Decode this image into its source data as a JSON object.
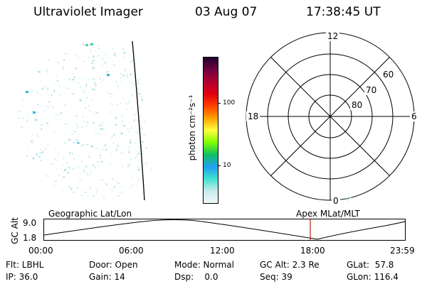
{
  "header": {
    "title": "Ultraviolet Imager",
    "date": "03 Aug 07",
    "time": "17:38:45 UT"
  },
  "colorbar": {
    "unit_label": "photon cm⁻²s⁻¹",
    "ticks": [
      "100",
      "10"
    ],
    "colors": [
      "#f0f8f8",
      "#c8ecec",
      "#40e0d0",
      "#20a0f0",
      "#10c060",
      "#80ff00",
      "#ffff40",
      "#ffa000",
      "#ff4000",
      "#e00010",
      "#b00030",
      "#700040",
      "#200030"
    ]
  },
  "polar_plot": {
    "mlt_labels": {
      "top": "12",
      "left": "18",
      "right": "6",
      "bottom": "0"
    },
    "lat_labels": [
      "60",
      "70",
      "80"
    ]
  },
  "timeline": {
    "y_axis_label": "GC Alt",
    "y_ticks": [
      "9.0",
      "1.8"
    ],
    "left_title": "Geographic Lat/Lon",
    "right_title": "Apex MLat/MLT",
    "time_ticks": [
      "00:00",
      "06:00",
      "12:00",
      "18:00",
      "23:59"
    ],
    "marker_color": "#c03020"
  },
  "info": {
    "col1": [
      "Flt: LBHL",
      "IP: 36.0"
    ],
    "col2": [
      "Door: Open",
      "Gain: 14"
    ],
    "col3": [
      "Mode: Normal",
      "Dsp:    0.0"
    ],
    "col4": [
      "GC Alt: 2.3 Re",
      "Seq: 39"
    ],
    "col5": [
      "GLat:  57.8",
      "GLon: 116.4"
    ]
  }
}
